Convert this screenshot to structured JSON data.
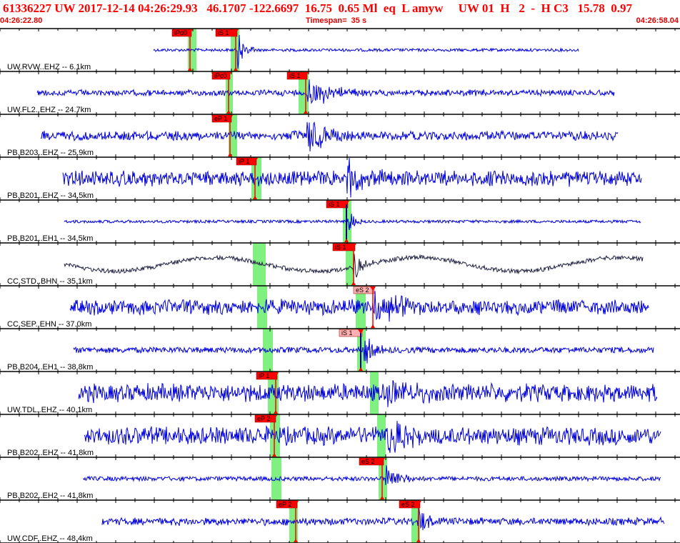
{
  "header": {
    "title": "61336227 UW 2017-12-14 04:26:29.93   46.1707 -122.6697  16.75  0.65 Ml  eq  L amyw     UW 01  H   2  -  H C3   15.78  0.97",
    "start_time": "04:26:22.80",
    "timespan": "Timespan=  35 s",
    "end_time": "04:26:58.04"
  },
  "colors": {
    "title": "#ff0000",
    "trace": "#0000dd",
    "trace_bhn": "#222244",
    "pick_box": "#ff0000",
    "pick_box_light": "#ffb0b0",
    "green_band": "#80f080",
    "tick": "#000000"
  },
  "channels": [
    {
      "label": "UW.RVW..EHZ -- 6.1km",
      "picks": [
        "iPd0",
        "iS 1"
      ]
    },
    {
      "label": "UW.FL2..EHZ -- 24.7km",
      "picks": [
        "iPc0",
        "iS 1"
      ]
    },
    {
      "label": "PB.B203..EHZ -- 25.9km",
      "picks": [
        "eP 1"
      ]
    },
    {
      "label": "PB.B201..EHZ -- 34.5km",
      "picks": [
        "iP 1"
      ]
    },
    {
      "label": "PB.B201..EH1 -- 34.5km",
      "picks": [
        "iS 1"
      ]
    },
    {
      "label": "CC.STD..BHN -- 35.1km",
      "picks": [
        "iS 1"
      ]
    },
    {
      "label": "CC.SEP..EHN -- 37.0km",
      "picks": [
        "eS 2"
      ]
    },
    {
      "label": "PB.B204..EH1 -- 38.8km",
      "picks": [
        "iS 1"
      ]
    },
    {
      "label": "UW.TDL..EHZ -- 40.1km",
      "picks": [
        "iP 1"
      ]
    },
    {
      "label": "PB.B202..EHZ -- 41.8km",
      "picks": [
        "eP 2"
      ]
    },
    {
      "label": "PB.B202..EH2 -- 41.8km",
      "picks": [
        "eS 2"
      ]
    },
    {
      "label": "UW.CDF..EHZ -- 48.4km",
      "picks": [
        "eP 2",
        "eS 2"
      ]
    }
  ],
  "icons": [
    "waveform-trace",
    "pick-flag"
  ]
}
